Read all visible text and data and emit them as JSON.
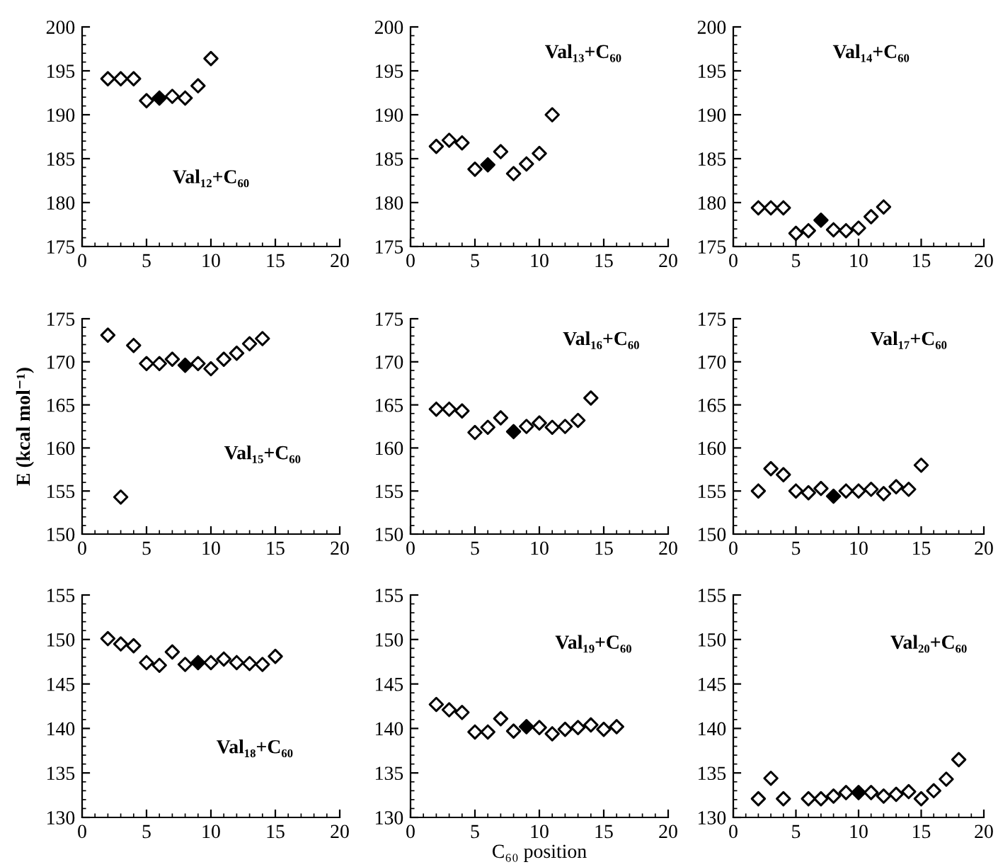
{
  "chart_data": [
    {
      "type": "scatter",
      "annotations": [
        "Val₁₂+C₆₀"
      ],
      "xlim": [
        0,
        20
      ],
      "ylim": [
        175,
        200
      ],
      "xticks": [
        0,
        5,
        10,
        15,
        20
      ],
      "yticks": [
        175,
        180,
        185,
        190,
        195,
        200
      ],
      "marker": "diamond",
      "series": [
        {
          "color": "#ffffff",
          "x": [
            2,
            3,
            4,
            5,
            7,
            8,
            9,
            10
          ],
          "values": [
            194.1,
            194.1,
            194.1,
            191.6,
            192.1,
            191.9,
            193.3,
            196.4
          ]
        },
        {
          "color": "#000000",
          "x": [
            6
          ],
          "values": [
            191.9
          ]
        }
      ]
    },
    {
      "type": "scatter",
      "annotations": [
        "Val₁₃+C₆₀"
      ],
      "xlim": [
        0,
        20
      ],
      "ylim": [
        175,
        200
      ],
      "xticks": [
        0,
        5,
        10,
        15,
        20
      ],
      "yticks": [
        175,
        180,
        185,
        190,
        195,
        200
      ],
      "marker": "diamond",
      "series": [
        {
          "color": "#ffffff",
          "x": [
            2,
            3,
            4,
            5,
            7,
            8,
            9,
            10,
            11
          ],
          "values": [
            186.4,
            187.1,
            186.8,
            183.8,
            185.8,
            183.3,
            184.4,
            185.6,
            190.0
          ]
        },
        {
          "color": "#000000",
          "x": [
            6
          ],
          "values": [
            184.3
          ]
        }
      ]
    },
    {
      "type": "scatter",
      "annotations": [
        "Val₁₄+C₆₀"
      ],
      "xlim": [
        0,
        20
      ],
      "ylim": [
        175,
        200
      ],
      "xticks": [
        0,
        5,
        10,
        15,
        20
      ],
      "yticks": [
        175,
        180,
        185,
        190,
        195,
        200
      ],
      "marker": "diamond",
      "series": [
        {
          "color": "#ffffff",
          "x": [
            2,
            3,
            4,
            5,
            6,
            8,
            9,
            10,
            11,
            12
          ],
          "values": [
            179.4,
            179.4,
            179.4,
            176.5,
            176.8,
            176.9,
            176.8,
            177.1,
            178.4,
            179.5
          ]
        },
        {
          "color": "#000000",
          "x": [
            7
          ],
          "values": [
            178.0
          ]
        }
      ]
    },
    {
      "type": "scatter",
      "annotations": [
        "Val₁₅+C₆₀"
      ],
      "ylabel": "E (kcal mol⁻¹)",
      "xlim": [
        0,
        20
      ],
      "ylim": [
        150,
        175
      ],
      "xticks": [
        0,
        5,
        10,
        15,
        20
      ],
      "yticks": [
        150,
        155,
        160,
        165,
        170,
        175
      ],
      "marker": "diamond",
      "series": [
        {
          "color": "#ffffff",
          "x": [
            2,
            3,
            4,
            5,
            6,
            7,
            9,
            10,
            11,
            12,
            13,
            14
          ],
          "values": [
            173.1,
            154.3,
            171.9,
            169.8,
            169.8,
            170.3,
            169.8,
            169.2,
            170.3,
            171.0,
            172.1,
            172.7
          ]
        },
        {
          "color": "#000000",
          "x": [
            8
          ],
          "values": [
            169.6
          ]
        }
      ]
    },
    {
      "type": "scatter",
      "annotations": [
        "Val₁₆+C₆₀"
      ],
      "xlim": [
        0,
        20
      ],
      "ylim": [
        150,
        175
      ],
      "xticks": [
        0,
        5,
        10,
        15,
        20
      ],
      "yticks": [
        150,
        155,
        160,
        165,
        170,
        175
      ],
      "marker": "diamond",
      "series": [
        {
          "color": "#ffffff",
          "x": [
            2,
            3,
            4,
            5,
            6,
            7,
            9,
            10,
            11,
            12,
            13,
            14
          ],
          "values": [
            164.5,
            164.5,
            164.3,
            161.8,
            162.4,
            163.5,
            162.5,
            162.9,
            162.4,
            162.5,
            163.2,
            165.8
          ]
        },
        {
          "color": "#000000",
          "x": [
            8
          ],
          "values": [
            161.9
          ]
        }
      ]
    },
    {
      "type": "scatter",
      "annotations": [
        "Val₁₇+C₆₀"
      ],
      "xlim": [
        0,
        20
      ],
      "ylim": [
        150,
        175
      ],
      "xticks": [
        0,
        5,
        10,
        15,
        20
      ],
      "yticks": [
        150,
        155,
        160,
        165,
        170,
        175
      ],
      "marker": "diamond",
      "series": [
        {
          "color": "#ffffff",
          "x": [
            2,
            3,
            4,
            5,
            6,
            7,
            9,
            10,
            11,
            12,
            13,
            14,
            15
          ],
          "values": [
            155.0,
            157.6,
            156.9,
            155.0,
            154.8,
            155.3,
            155.0,
            155.0,
            155.2,
            154.7,
            155.5,
            155.2,
            158.0
          ]
        },
        {
          "color": "#000000",
          "x": [
            8
          ],
          "values": [
            154.4
          ]
        }
      ]
    },
    {
      "type": "scatter",
      "annotations": [
        "Val₁₈+C₆₀"
      ],
      "xlim": [
        0,
        20
      ],
      "ylim": [
        130,
        155
      ],
      "xticks": [
        0,
        5,
        10,
        15,
        20
      ],
      "yticks": [
        130,
        135,
        140,
        145,
        150,
        155
      ],
      "marker": "diamond",
      "series": [
        {
          "color": "#ffffff",
          "x": [
            2,
            3,
            4,
            5,
            6,
            7,
            8,
            10,
            11,
            12,
            13,
            14,
            15
          ],
          "values": [
            150.1,
            149.5,
            149.3,
            147.4,
            147.1,
            148.6,
            147.2,
            147.4,
            147.8,
            147.4,
            147.3,
            147.2,
            148.1
          ]
        },
        {
          "color": "#000000",
          "x": [
            9
          ],
          "values": [
            147.4
          ]
        }
      ]
    },
    {
      "type": "scatter",
      "annotations": [
        "Val₁₉+C₆₀"
      ],
      "xlabel": "C₆₀ position",
      "xlim": [
        0,
        20
      ],
      "ylim": [
        130,
        155
      ],
      "xticks": [
        0,
        5,
        10,
        15,
        20
      ],
      "yticks": [
        130,
        135,
        140,
        145,
        150,
        155
      ],
      "marker": "diamond",
      "series": [
        {
          "color": "#ffffff",
          "x": [
            2,
            3,
            4,
            5,
            6,
            7,
            8,
            10,
            11,
            12,
            13,
            14,
            15,
            16
          ],
          "values": [
            142.7,
            142.1,
            141.8,
            139.6,
            139.6,
            141.1,
            139.7,
            140.1,
            139.4,
            139.9,
            140.1,
            140.4,
            139.9,
            140.2
          ]
        },
        {
          "color": "#000000",
          "x": [
            9
          ],
          "values": [
            140.2
          ]
        }
      ]
    },
    {
      "type": "scatter",
      "annotations": [
        "Val₂₀+C₆₀"
      ],
      "xlim": [
        0,
        20
      ],
      "ylim": [
        130,
        155
      ],
      "xticks": [
        0,
        5,
        10,
        15,
        20
      ],
      "yticks": [
        130,
        135,
        140,
        145,
        150,
        155
      ],
      "marker": "diamond",
      "series": [
        {
          "color": "#ffffff",
          "x": [
            2,
            3,
            4,
            6,
            7,
            8,
            9,
            11,
            12,
            13,
            14,
            15,
            16,
            17,
            18
          ],
          "values": [
            132.1,
            134.4,
            132.1,
            132.1,
            132.1,
            132.4,
            132.8,
            132.8,
            132.4,
            132.6,
            132.9,
            132.1,
            133.0,
            134.3,
            136.5
          ]
        },
        {
          "color": "#000000",
          "x": [
            10
          ],
          "values": [
            132.8
          ]
        }
      ]
    }
  ]
}
